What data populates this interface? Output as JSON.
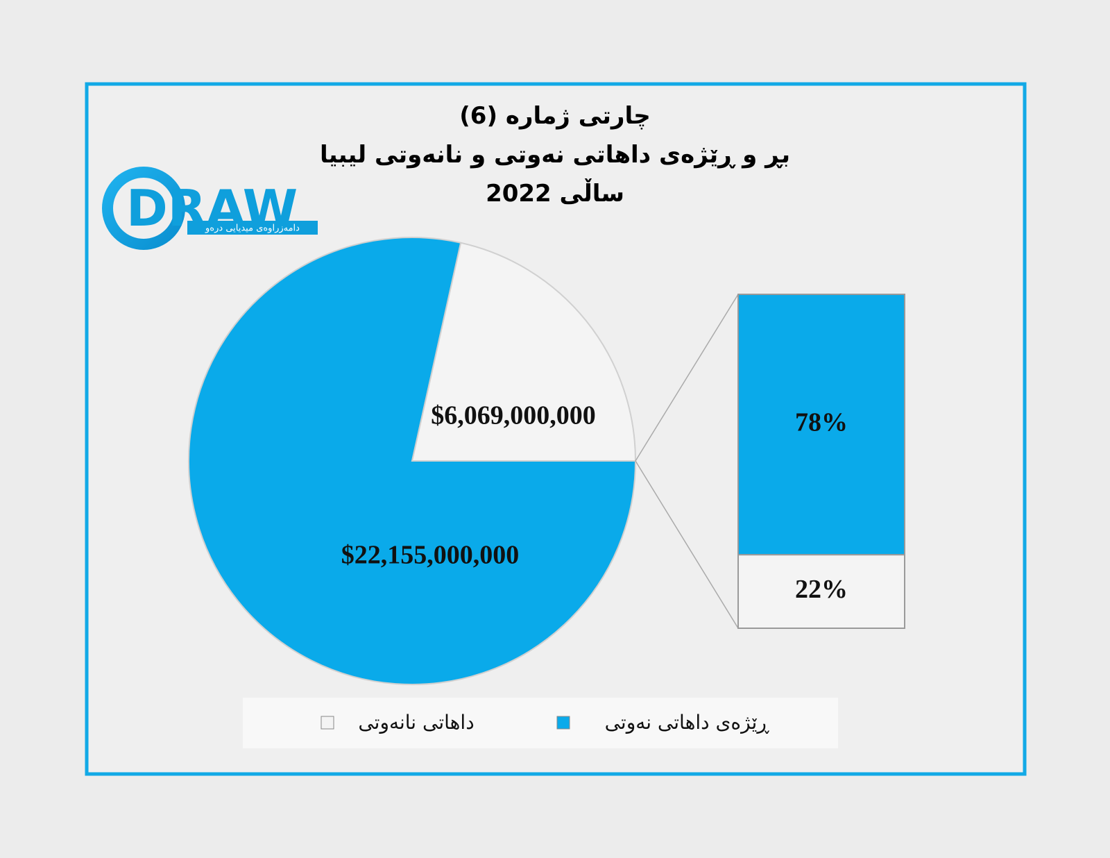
{
  "logo": {
    "text": "DRAW",
    "tagline": "دامەزراوەی میدیایی درەو"
  },
  "chart_data": {
    "type": "pie",
    "title": [
      "چارتی ژمارە (6)",
      "بڕ و ڕێژەی داهاتی نەوتی و نانەوتی لیبیا",
      "ساڵی 2022"
    ],
    "categories": [
      "ڕێژەی داهاتی نەوتی",
      "داهاتی نانەوتی"
    ],
    "colors": [
      "#0aaaea",
      "#f4f4f4"
    ],
    "values": [
      22155000000,
      6069000000
    ],
    "value_labels": [
      "$22,155,000,000",
      "$6,069,000,000"
    ],
    "breakout": {
      "type": "stacked-bar",
      "values": [
        78,
        22
      ],
      "value_labels": [
        "78%",
        "22%"
      ]
    }
  }
}
